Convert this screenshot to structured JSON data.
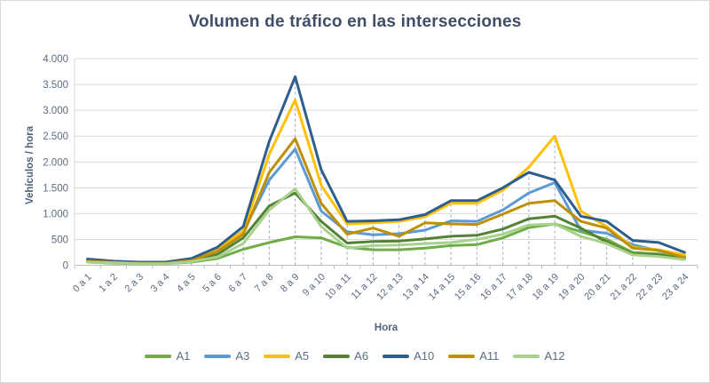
{
  "chart": {
    "title": "Volumen de tráfico en las intersecciones",
    "x_axis_title": "Hora",
    "y_axis_title": "Vehículos / hora"
  },
  "chart_data": {
    "type": "line",
    "title": "Volumen de tráfico en las intersecciones",
    "xlabel": "Hora",
    "ylabel": "Vehículos / hora",
    "ylim": [
      0,
      4000
    ],
    "y_tick_step": 500,
    "y_tick_labels": [
      "0",
      "500",
      "1.000",
      "1.500",
      "2.000",
      "2.500",
      "3.000",
      "3.500",
      "4.000"
    ],
    "grid": "horizontal",
    "legend_position": "bottom",
    "categories": [
      "0 a 1",
      "1 a 2",
      "2 a 3",
      "3 a 4",
      "4 a 5",
      "5 a 6",
      "6 a 7",
      "7 a 8",
      "8 a 9",
      "9 a 10",
      "10 a 11",
      "11 a 12",
      "12 a 13",
      "13 a 14",
      "14 a 15",
      "15 a 16",
      "16 a 17",
      "17 a 18",
      "18 a 19",
      "19 a 20",
      "20 a 21",
      "21 a 22",
      "22 a 23",
      "23 a 24"
    ],
    "series": [
      {
        "name": "A1",
        "color": "#70AD47",
        "values": [
          60,
          40,
          30,
          30,
          60,
          130,
          310,
          440,
          550,
          530,
          350,
          300,
          300,
          330,
          380,
          400,
          530,
          730,
          800,
          650,
          500,
          250,
          220,
          140
        ]
      },
      {
        "name": "A3",
        "color": "#5B9BD5",
        "values": [
          90,
          60,
          45,
          45,
          100,
          330,
          650,
          1650,
          2250,
          1050,
          650,
          590,
          610,
          680,
          860,
          850,
          1070,
          1400,
          1600,
          680,
          620,
          400,
          280,
          170
        ]
      },
      {
        "name": "A5",
        "color": "#FFC000",
        "values": [
          100,
          70,
          50,
          50,
          110,
          300,
          670,
          2150,
          3200,
          1550,
          800,
          820,
          850,
          940,
          1200,
          1200,
          1450,
          1900,
          2500,
          1050,
          750,
          350,
          300,
          200
        ]
      },
      {
        "name": "A6",
        "color": "#548235",
        "values": [
          70,
          50,
          35,
          35,
          80,
          210,
          530,
          1150,
          1400,
          850,
          430,
          460,
          470,
          510,
          560,
          580,
          700,
          900,
          950,
          720,
          450,
          220,
          200,
          130
        ]
      },
      {
        "name": "A10",
        "color": "#2E5E8E",
        "values": [
          120,
          80,
          60,
          60,
          130,
          350,
          750,
          2400,
          3650,
          1850,
          850,
          860,
          880,
          980,
          1250,
          1250,
          1500,
          1800,
          1650,
          950,
          850,
          480,
          440,
          250
        ]
      },
      {
        "name": "A11",
        "color": "#BF8F00",
        "values": [
          80,
          55,
          40,
          40,
          90,
          270,
          600,
          1800,
          2450,
          1200,
          600,
          720,
          560,
          820,
          800,
          790,
          990,
          1200,
          1250,
          850,
          720,
          330,
          290,
          150
        ]
      },
      {
        "name": "A12",
        "color": "#A9D18E",
        "values": [
          60,
          45,
          30,
          30,
          70,
          160,
          420,
          1070,
          1480,
          750,
          330,
          380,
          390,
          420,
          440,
          500,
          600,
          780,
          800,
          560,
          420,
          200,
          170,
          110
        ]
      }
    ],
    "dropline_indices": [
      4,
      5,
      6,
      7,
      8,
      9,
      10,
      11,
      12,
      13,
      14,
      15,
      16,
      17,
      18,
      19,
      20,
      21
    ],
    "colors": {
      "gridline": "#d9d9d9",
      "axis_line": "#bfbfbf",
      "dropline": "#96a9c6",
      "title_text": "#3f4d66",
      "tick_text": "#5b6b80"
    }
  }
}
